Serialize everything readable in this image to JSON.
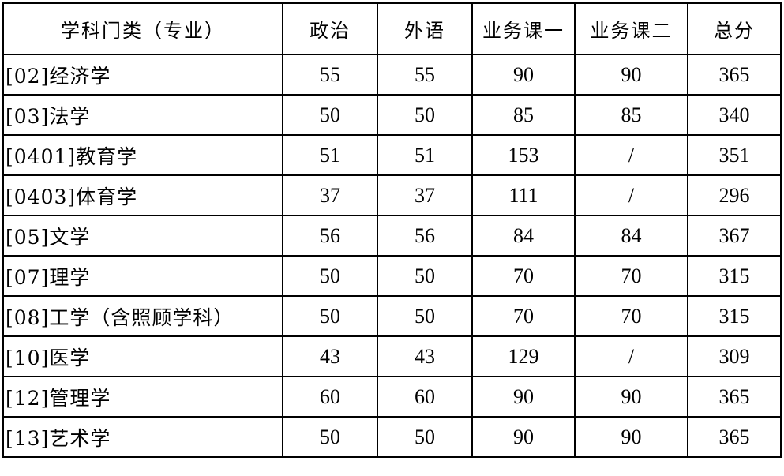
{
  "headers": [
    "学科门类（专业）",
    "政治",
    "外语",
    "业务课一",
    "业务课二",
    "总分"
  ],
  "rows": [
    [
      "[02]经济学",
      "55",
      "55",
      "90",
      "90",
      "365"
    ],
    [
      "[03]法学",
      "50",
      "50",
      "85",
      "85",
      "340"
    ],
    [
      "[0401]教育学",
      "51",
      "51",
      "153",
      "/",
      "351"
    ],
    [
      "[0403]体育学",
      "37",
      "37",
      "111",
      "/",
      "296"
    ],
    [
      "[05]文学",
      "56",
      "56",
      "84",
      "84",
      "367"
    ],
    [
      "[07]理学",
      "50",
      "50",
      "70",
      "70",
      "315"
    ],
    [
      "[08]工学（含照顾学科）",
      "50",
      "50",
      "70",
      "70",
      "315"
    ],
    [
      "[10]医学",
      "43",
      "43",
      "129",
      "/",
      "309"
    ],
    [
      "[12]管理学",
      "60",
      "60",
      "90",
      "90",
      "365"
    ],
    [
      "[13]艺术学",
      "50",
      "50",
      "90",
      "90",
      "365"
    ]
  ]
}
